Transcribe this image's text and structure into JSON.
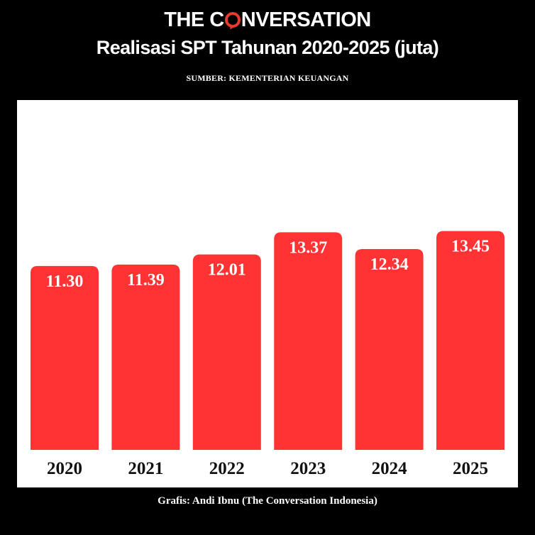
{
  "header": {
    "brand_left": "THE C",
    "brand_right": "NVERSATION",
    "title": "Realisasi SPT Tahunan 2020-2025 (juta)",
    "source": "SUMBER: KEMENTERIAN KEUANGAN"
  },
  "footer": {
    "credit": "Grafis: Andi Ibnu (The Conversation Indonesia)"
  },
  "colors": {
    "bar": "#ff3333",
    "background": "#000000",
    "panel": "#ffffff",
    "label_inside": "#ffffff",
    "label_axis": "#111111"
  },
  "chart_data": {
    "type": "bar",
    "title": "Realisasi SPT Tahunan 2020-2025 (juta)",
    "categories": [
      "2020",
      "2021",
      "2022",
      "2023",
      "2024",
      "2025"
    ],
    "values": [
      11.3,
      11.39,
      12.01,
      13.37,
      12.34,
      13.45
    ],
    "value_labels": [
      "11.30",
      "11.39",
      "12.01",
      "13.37",
      "12.34",
      "13.45"
    ],
    "ylim": [
      0,
      21.5
    ],
    "grid": false,
    "legend": "none"
  }
}
